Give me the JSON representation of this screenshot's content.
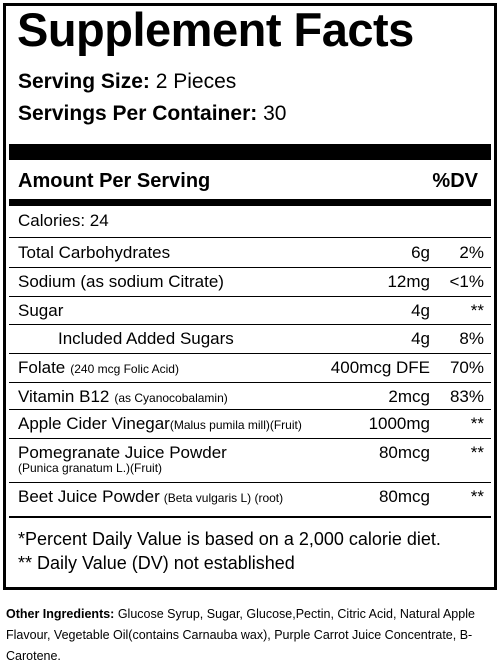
{
  "title": "Supplement Facts",
  "serving_size_label": "Serving Size:",
  "serving_size_value": "2 Pieces",
  "servings_label": "Servings Per Container:",
  "servings_value": "30",
  "header_left": "Amount Per Serving",
  "header_right": "%DV",
  "calories": "Calories: 24",
  "rows": [
    {
      "name": "Total Carbohydrates",
      "sub": "",
      "amount": "6g",
      "dv": "2%"
    },
    {
      "name": "Sodium (as sodium Citrate)",
      "sub": "",
      "amount": "12mg",
      "dv": "<1%"
    },
    {
      "name": "Sugar",
      "sub": "",
      "amount": "4g",
      "dv": "**"
    },
    {
      "name": "Included Added Sugars",
      "sub": "",
      "amount": "4g",
      "dv": "8%"
    },
    {
      "name": "Folate",
      "sub": "(240 mcg Folic Acid)",
      "amount": "400mcg DFE",
      "dv": "70%"
    },
    {
      "name": "Vitamin B12",
      "sub": "(as Cyanocobalamin)",
      "amount": "2mcg",
      "dv": "83%"
    },
    {
      "name": "Apple Cider Vinegar",
      "sub": "(Malus pumila mill)(Fruit)",
      "amount": "1000mg",
      "dv": "**"
    },
    {
      "name": "Pomegranate Juice Powder",
      "sub": "(Punica granatum L.)(Fruit)",
      "amount": "80mcg",
      "dv": "**"
    },
    {
      "name": "Beet Juice Powder",
      "sub": "(Beta vulgaris L) (root)",
      "amount": "80mcg",
      "dv": "**"
    }
  ],
  "footnote_1": "*Percent Daily Value is based on a 2,000 calorie diet.",
  "footnote_2": "** Daily Value (DV) not established",
  "other_label": "Other Ingredients:",
  "other_text": "Glucose Syrup, Sugar, Glucose,Pectin, Citric Acid,  Natural Apple Flavour, Vegetable Oil(contains Carnauba wax), Purple Carrot Juice Concentrate, B-Carotene."
}
